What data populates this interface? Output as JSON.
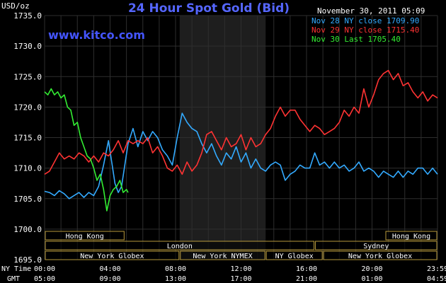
{
  "header": {
    "unit_label": "USD/oz",
    "title": "24 Hour Spot Gold (Bid)",
    "timestamp": "November 30, 2011 05:09",
    "watermark": "www.kitco.com"
  },
  "legend": [
    {
      "label": "Nov 28 NY close 1709.90",
      "color": "#33aaff"
    },
    {
      "label": "Nov 29 NY close 1715.40",
      "color": "#ff3333"
    },
    {
      "label": "Nov 30 Last 1705.40",
      "color": "#33ee33"
    }
  ],
  "time_axis": {
    "row1_label": "NY Time",
    "row2_label": "GMT",
    "ny_ticks": [
      "00:00",
      "04:00",
      "08:00",
      "12:00",
      "16:00",
      "20:00",
      "23:59"
    ],
    "gmt_ticks": [
      "05:00",
      "09:00",
      "13:00",
      "17:00",
      "21:00",
      "01:00",
      "04:59"
    ]
  },
  "market_sessions": [
    {
      "label": "Hong Kong",
      "start": 0,
      "end": 4.9,
      "row": 0
    },
    {
      "label": "Hong Kong",
      "start": 20.8,
      "end": 24,
      "row": 0
    },
    {
      "label": "London",
      "start": 0,
      "end": 16.5,
      "row": 1
    },
    {
      "label": "Sydney",
      "start": 16.5,
      "end": 24,
      "row": 1
    },
    {
      "label": "New York Globex",
      "start": 0,
      "end": 8.25,
      "row": 2
    },
    {
      "label": "New York NYMEX",
      "start": 8.25,
      "end": 13.5,
      "row": 2
    },
    {
      "label": "NY Globex",
      "start": 13.5,
      "end": 17.0,
      "row": 2
    },
    {
      "label": "New York Globex",
      "start": 17.0,
      "end": 24,
      "row": 2
    }
  ],
  "colors": {
    "background": "#000000",
    "grid": "#2e2e2e",
    "nymex_shade": "#1e1e1e",
    "axis_text": "#ffffff",
    "title": "#5566ff",
    "watermark": "#4455ff",
    "session_border": "#b89a3c",
    "session_text": "#ffffff"
  },
  "chart_data": {
    "type": "line",
    "title": "24 Hour Spot Gold (Bid)",
    "ylabel": "USD/oz",
    "ylim": [
      1695,
      1735
    ],
    "y_ticks": [
      "1695.0",
      "1700.0",
      "1705.0",
      "1710.0",
      "1715.0",
      "1720.0",
      "1725.0",
      "1730.0",
      "1735.0"
    ],
    "xlim": [
      0,
      24
    ],
    "x_unit": "hours (NY time)",
    "grid": true,
    "legend_position": "top-right",
    "shaded_region": [
      8.25,
      13.5
    ],
    "series": [
      {
        "name": "Nov 28 NY close 1709.90",
        "color": "#33aaff",
        "x": [
          0,
          0.3,
          0.6,
          0.9,
          1.2,
          1.5,
          1.8,
          2.1,
          2.4,
          2.7,
          3.0,
          3.3,
          3.6,
          3.9,
          4.1,
          4.3,
          4.5,
          4.7,
          4.9,
          5.1,
          5.4,
          5.7,
          6.0,
          6.3,
          6.6,
          6.9,
          7.2,
          7.5,
          7.8,
          8.1,
          8.4,
          8.7,
          9.0,
          9.3,
          9.6,
          9.9,
          10.2,
          10.5,
          10.8,
          11.1,
          11.4,
          11.7,
          12.0,
          12.3,
          12.6,
          12.9,
          13.2,
          13.5,
          13.8,
          14.1,
          14.4,
          14.7,
          15.0,
          15.3,
          15.6,
          15.9,
          16.2,
          16.5,
          16.8,
          17.1,
          17.4,
          17.7,
          18.0,
          18.3,
          18.6,
          18.9,
          19.2,
          19.5,
          19.8,
          20.1,
          20.4,
          20.7,
          21.0,
          21.3,
          21.6,
          21.9,
          22.2,
          22.5,
          22.8,
          23.1,
          23.4,
          23.7,
          24.0
        ],
        "values": [
          1706.2,
          1706.0,
          1705.5,
          1706.3,
          1705.8,
          1705.0,
          1705.5,
          1706.0,
          1705.2,
          1706.0,
          1705.5,
          1707.0,
          1710.5,
          1714.5,
          1711.0,
          1707.5,
          1706.0,
          1707.0,
          1710.5,
          1714.0,
          1716.5,
          1713.5,
          1716.0,
          1714.5,
          1716.0,
          1715.0,
          1713.0,
          1712.0,
          1710.5,
          1715.0,
          1719.0,
          1717.5,
          1716.5,
          1716.0,
          1714.0,
          1712.5,
          1714.0,
          1712.0,
          1710.5,
          1712.5,
          1711.5,
          1713.5,
          1711.0,
          1712.5,
          1710.0,
          1711.5,
          1710.0,
          1709.5,
          1710.5,
          1711.0,
          1710.5,
          1708.0,
          1709.0,
          1709.5,
          1710.5,
          1710.0,
          1710.0,
          1712.5,
          1710.5,
          1711.0,
          1710.0,
          1711.0,
          1710.0,
          1710.5,
          1709.5,
          1710.0,
          1711.0,
          1709.5,
          1710.0,
          1709.5,
          1708.5,
          1709.5,
          1709.0,
          1708.5,
          1709.5,
          1708.5,
          1709.5,
          1709.0,
          1710.0,
          1710.0,
          1709.0,
          1710.0,
          1709.0
        ]
      },
      {
        "name": "Nov 29 NY close 1715.40",
        "color": "#ff3333",
        "x": [
          0,
          0.3,
          0.6,
          0.9,
          1.2,
          1.5,
          1.8,
          2.1,
          2.4,
          2.7,
          3.0,
          3.3,
          3.6,
          3.9,
          4.2,
          4.5,
          4.8,
          5.1,
          5.4,
          5.7,
          6.0,
          6.3,
          6.6,
          6.9,
          7.2,
          7.5,
          7.8,
          8.1,
          8.4,
          8.7,
          9.0,
          9.3,
          9.6,
          9.9,
          10.2,
          10.5,
          10.8,
          11.1,
          11.4,
          11.7,
          12.0,
          12.3,
          12.6,
          12.9,
          13.2,
          13.5,
          13.8,
          14.1,
          14.4,
          14.7,
          15.0,
          15.3,
          15.6,
          15.9,
          16.2,
          16.5,
          16.8,
          17.1,
          17.4,
          17.7,
          18.0,
          18.3,
          18.6,
          18.9,
          19.2,
          19.5,
          19.8,
          20.1,
          20.4,
          20.7,
          21.0,
          21.3,
          21.6,
          21.9,
          22.2,
          22.5,
          22.8,
          23.1,
          23.4,
          23.7,
          24.0
        ],
        "values": [
          1709.0,
          1709.5,
          1711.0,
          1712.5,
          1711.5,
          1712.0,
          1711.5,
          1712.5,
          1712.0,
          1711.0,
          1712.0,
          1711.0,
          1712.5,
          1712.0,
          1713.0,
          1714.5,
          1712.5,
          1714.5,
          1714.0,
          1714.5,
          1714.0,
          1715.0,
          1712.5,
          1713.5,
          1712.0,
          1710.0,
          1709.5,
          1710.5,
          1709.0,
          1711.0,
          1709.5,
          1710.5,
          1712.5,
          1715.5,
          1716.0,
          1714.5,
          1713.0,
          1715.0,
          1713.5,
          1714.0,
          1715.5,
          1713.0,
          1715.0,
          1713.5,
          1714.0,
          1715.5,
          1716.5,
          1718.5,
          1720.0,
          1718.5,
          1719.5,
          1719.5,
          1718.0,
          1717.0,
          1716.0,
          1717.0,
          1716.5,
          1715.5,
          1716.0,
          1716.5,
          1717.5,
          1719.5,
          1718.5,
          1720.0,
          1719.0,
          1723.0,
          1720.0,
          1722.0,
          1724.5,
          1725.5,
          1726.0,
          1724.5,
          1725.5,
          1723.5,
          1724.0,
          1722.5,
          1721.5,
          1722.5,
          1721.0,
          1722.0,
          1721.5
        ]
      },
      {
        "name": "Nov 30 Last 1705.40",
        "color": "#33ee33",
        "x": [
          0,
          0.2,
          0.4,
          0.6,
          0.8,
          1.0,
          1.2,
          1.4,
          1.6,
          1.8,
          2.0,
          2.2,
          2.4,
          2.6,
          2.8,
          3.0,
          3.2,
          3.4,
          3.6,
          3.8,
          4.0,
          4.2,
          4.4,
          4.6,
          4.8,
          5.0,
          5.1
        ],
        "values": [
          1722.5,
          1722.0,
          1723.0,
          1722.0,
          1722.5,
          1721.5,
          1722.0,
          1720.0,
          1719.5,
          1717.0,
          1717.5,
          1715.0,
          1713.5,
          1712.0,
          1711.5,
          1710.0,
          1708.0,
          1709.0,
          1706.5,
          1703.0,
          1705.5,
          1706.5,
          1707.0,
          1708.0,
          1706.0,
          1706.5,
          1706.0
        ]
      }
    ]
  }
}
